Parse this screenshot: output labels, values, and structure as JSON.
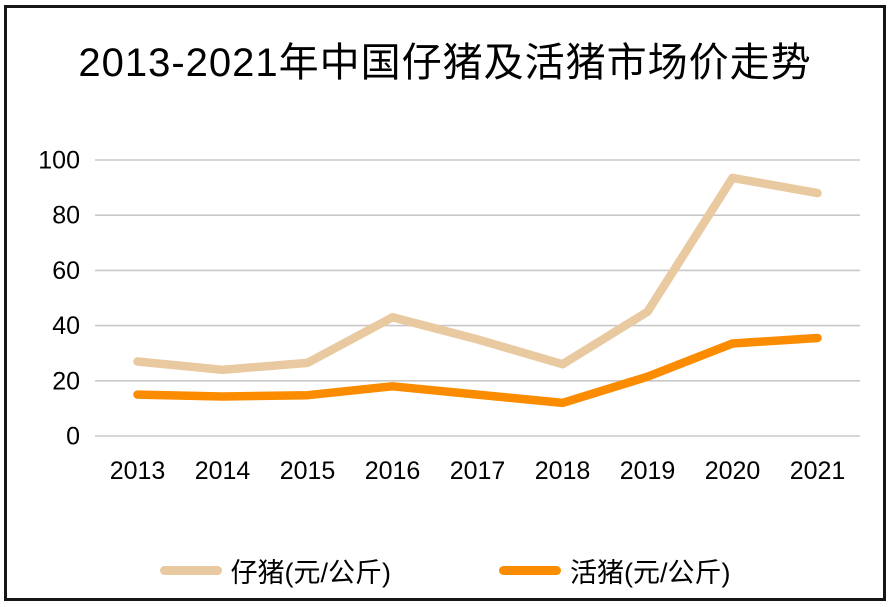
{
  "window": {
    "background": "#ffffff",
    "frame_border_color": "#161616"
  },
  "chart_data": {
    "type": "line",
    "title": "2013-2021年中国仔猪及活猪市场价走势",
    "categories": [
      "2013",
      "2014",
      "2015",
      "2016",
      "2017",
      "2018",
      "2019",
      "2020",
      "2021"
    ],
    "series": [
      {
        "name": "仔猪(元/公斤)",
        "color": "#E9C9A0",
        "values": [
          27,
          24,
          26.5,
          43,
          35,
          26,
          45,
          93.5,
          88
        ]
      },
      {
        "name": "活猪(元/公斤)",
        "color": "#FB8C00",
        "values": [
          15,
          14.3,
          14.8,
          18,
          15,
          12,
          21.5,
          33.5,
          35.5
        ]
      }
    ],
    "xlabel": "",
    "ylabel": "",
    "ylim": [
      0,
      100
    ],
    "yticks": [
      0,
      20,
      40,
      60,
      80,
      100
    ],
    "grid": "horizontal",
    "gridline_color": "#C8C8C8",
    "tick_label_color": "#000000",
    "legend_position": "bottom"
  }
}
